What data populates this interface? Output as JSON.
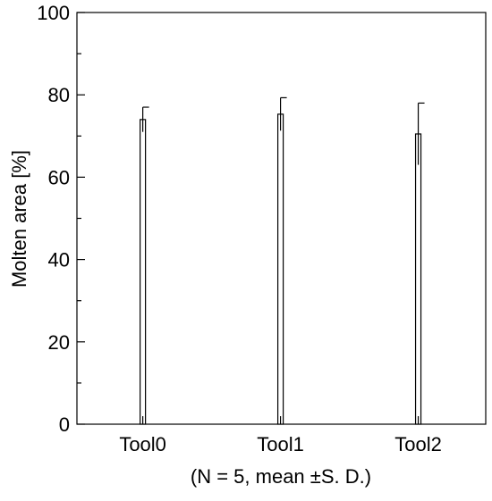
{
  "chart_data": {
    "type": "bar",
    "categories": [
      "Tool0",
      "Tool1",
      "Tool2"
    ],
    "values": [
      74,
      75.3,
      70.5
    ],
    "errors": [
      3,
      4,
      7.5
    ],
    "ylabel": "Molten area [%]",
    "xlabel": "(N = 5, mean ±S. D.)",
    "ylim": [
      0,
      100
    ],
    "yticks": [
      0,
      20,
      40,
      60,
      80,
      100
    ],
    "yminor_step": 10,
    "grid": false,
    "bar_fill": "#ffffff",
    "bar_stroke": "#000000"
  }
}
